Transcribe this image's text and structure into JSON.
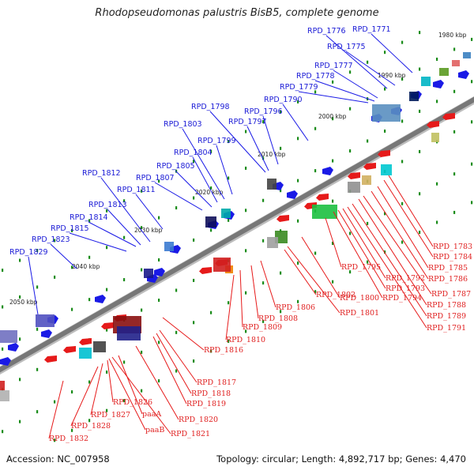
{
  "title": "Rhodopseudomonas palustris BisB5, complete genome",
  "footer": {
    "accession": "Accession: NC_007958",
    "summary": "Topology: circular; Length: 4,892,717 bp; Genes: 4,470"
  },
  "colors": {
    "forward_strand": "#1a1ae6",
    "reverse_strand": "#e61a1a",
    "backbone": "#777777",
    "tick": "#1a8c1a"
  },
  "kbp_labels": [
    "1980 kbp",
    "1990 kbp",
    "2000 kbp",
    "2010 kbp",
    "2020 kbp",
    "2030 kbp",
    "2040 kbp",
    "2050 kbp"
  ],
  "forward_genes": [
    "RPD_1771",
    "RPD_1775",
    "RPD_1776",
    "RPD_1777",
    "RPD_1778",
    "RPD_1779",
    "RPD_1790",
    "RPD_1796",
    "RPD_1797",
    "RPD_1798",
    "RPD_1799",
    "RPD_1803",
    "RPD_1804",
    "RPD_1805",
    "RPD_1807",
    "RPD_1811",
    "RPD_1812",
    "RPD_1813",
    "RPD_1814",
    "RPD_1815",
    "RPD_1823",
    "RPD_1829"
  ],
  "reverse_genes": [
    "RPD_1783",
    "RPD_1784",
    "RPD_1785",
    "RPD_1786",
    "RPD_1787",
    "RPD_1788",
    "RPD_1789",
    "RPD_1791",
    "RPD_1792",
    "RPD_1793",
    "RPD_1794",
    "RPD_1795",
    "RPD_1800",
    "RPD_1801",
    "RPD_1802",
    "RPD_1806",
    "RPD_1808",
    "RPD_1809",
    "RPD_1810",
    "RPD_1816",
    "RPD_1817",
    "RPD_1818",
    "RPD_1819",
    "RPD_1820",
    "RPD_1821",
    "paaA",
    "paaB",
    "RPD_1826",
    "RPD_1827",
    "RPD_1828",
    "RPD_1832"
  ]
}
